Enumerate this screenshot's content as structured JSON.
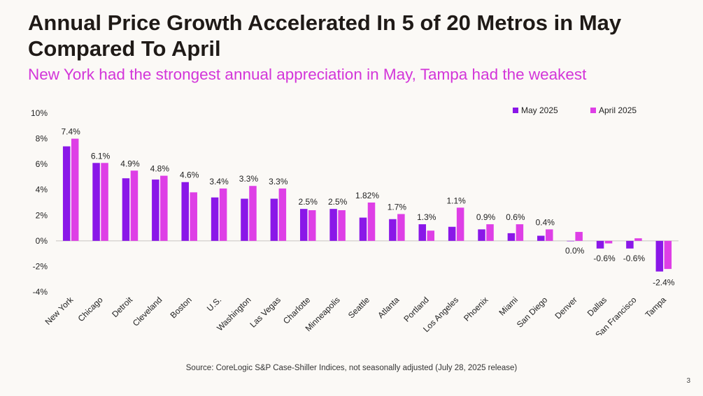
{
  "header": {
    "title": "Annual Price Growth Accelerated In 5 of 20 Metros in May Compared To April",
    "subtitle": "New York had the strongest annual appreciation in May, Tampa had the weakest"
  },
  "footer": {
    "source": "Source: CoreLogic S&P Case-Shiller Indices, not seasonally adjusted (July 28, 2025 release)",
    "page_number": "3"
  },
  "colors": {
    "series_may": "#8a17e8",
    "series_april": "#de3fe6",
    "title": "#1f1a17",
    "subtitle": "#d335d9"
  },
  "chart_data": {
    "type": "bar",
    "title": "",
    "xlabel": "",
    "ylabel": "",
    "ylim": [
      -4,
      10
    ],
    "yticks": [
      -4,
      -2,
      0,
      2,
      4,
      6,
      8,
      10
    ],
    "ytick_labels": [
      "-4%",
      "-2%",
      "0%",
      "2%",
      "4%",
      "6%",
      "8%",
      "10%"
    ],
    "legend_position": "top-right",
    "categories": [
      "New York",
      "Chicago",
      "Detroit",
      "Cleveland",
      "Boston",
      "U.S.",
      "Washington",
      "Las Vegas",
      "Charlotte",
      "Minneapolis",
      "Seattle",
      "Atlanta",
      "Portland",
      "Los Angeles",
      "Phoenix",
      "Miami",
      "San Diego",
      "Denver",
      "Dallas",
      "San Francisco",
      "Tampa"
    ],
    "series": [
      {
        "name": "May 2025",
        "values": [
          7.4,
          6.1,
          4.9,
          4.8,
          4.6,
          3.4,
          3.3,
          3.3,
          2.5,
          2.5,
          1.82,
          1.7,
          1.3,
          1.1,
          0.9,
          0.6,
          0.4,
          0.0,
          -0.6,
          -0.6,
          -2.4
        ],
        "labels": [
          "7.4%",
          "6.1%",
          "4.9%",
          "4.8%",
          "4.6%",
          "3.4%",
          "3.3%",
          "3.3%",
          "2.5%",
          "2.5%",
          "1.82%",
          "1.7%",
          "1.3%",
          "1.1%",
          "0.9%",
          "0.6%",
          "0.4%",
          "0.0%",
          "-0.6%",
          "-0.6%",
          "-2.4%"
        ]
      },
      {
        "name": "April 2025",
        "values": [
          8.0,
          6.1,
          5.5,
          5.1,
          3.8,
          4.1,
          4.3,
          4.1,
          2.4,
          2.4,
          3.0,
          2.1,
          0.8,
          2.6,
          1.3,
          1.3,
          0.9,
          0.7,
          -0.2,
          0.2,
          -2.2
        ]
      }
    ]
  }
}
